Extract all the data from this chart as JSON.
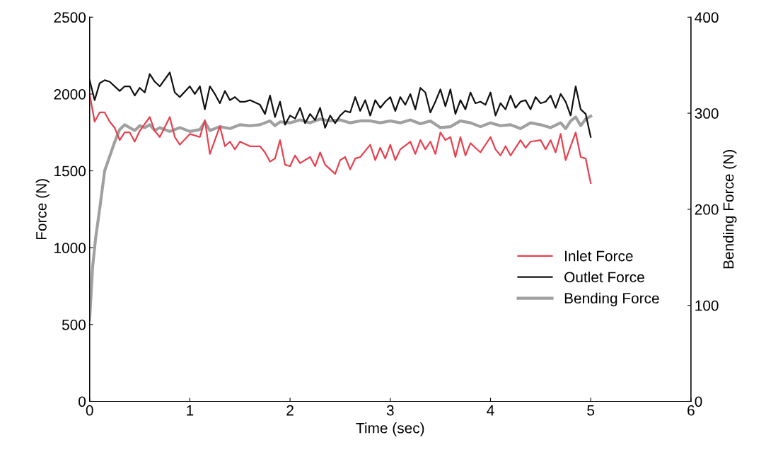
{
  "chart_data": {
    "type": "line",
    "xlabel": "Time (sec)",
    "ylabel": "Force (N)",
    "y2label": "Bending Force (N)",
    "xlim": [
      0,
      6
    ],
    "xticks": [
      0,
      1,
      2,
      3,
      4,
      5,
      6
    ],
    "ylim": [
      0,
      2500
    ],
    "yticks": [
      0,
      500,
      1000,
      1500,
      2000,
      2500
    ],
    "y2lim": [
      0,
      400
    ],
    "y2ticks": [
      0,
      100,
      200,
      300,
      400
    ],
    "grid": false,
    "legend": "right",
    "marker": "none",
    "line_style": "solid",
    "series": [
      {
        "name": "Inlet Force",
        "color": "#e8404f",
        "x": [
          0,
          0.05,
          0.1,
          0.15,
          0.2,
          0.25,
          0.3,
          0.35,
          0.4,
          0.45,
          0.5,
          0.6,
          0.65,
          0.7,
          0.8,
          0.85,
          0.9,
          1.0,
          1.1,
          1.15,
          1.2,
          1.3,
          1.35,
          1.4,
          1.45,
          1.5,
          1.6,
          1.7,
          1.75,
          1.8,
          1.85,
          1.9,
          1.95,
          2.0,
          2.05,
          2.1,
          2.2,
          2.25,
          2.3,
          2.35,
          2.45,
          2.5,
          2.55,
          2.6,
          2.65,
          2.7,
          2.8,
          2.85,
          2.9,
          2.95,
          3.0,
          3.05,
          3.1,
          3.2,
          3.25,
          3.3,
          3.35,
          3.4,
          3.45,
          3.5,
          3.55,
          3.6,
          3.65,
          3.7,
          3.75,
          3.8,
          3.85,
          3.9,
          4.0,
          4.05,
          4.1,
          4.15,
          4.2,
          4.3,
          4.35,
          4.4,
          4.5,
          4.55,
          4.6,
          4.65,
          4.7,
          4.75,
          4.85,
          4.9,
          4.95,
          5.0
        ],
        "values": [
          2000,
          1820,
          1880,
          1880,
          1820,
          1780,
          1700,
          1750,
          1750,
          1690,
          1760,
          1850,
          1760,
          1720,
          1850,
          1720,
          1670,
          1740,
          1720,
          1830,
          1610,
          1790,
          1660,
          1690,
          1640,
          1690,
          1660,
          1660,
          1620,
          1560,
          1580,
          1700,
          1540,
          1530,
          1600,
          1550,
          1590,
          1530,
          1620,
          1540,
          1480,
          1570,
          1590,
          1510,
          1580,
          1590,
          1670,
          1570,
          1650,
          1580,
          1670,
          1570,
          1640,
          1690,
          1610,
          1700,
          1640,
          1690,
          1610,
          1750,
          1700,
          1720,
          1590,
          1720,
          1600,
          1680,
          1650,
          1620,
          1720,
          1640,
          1600,
          1660,
          1600,
          1700,
          1650,
          1690,
          1700,
          1640,
          1700,
          1620,
          1740,
          1570,
          1750,
          1590,
          1580,
          1420
        ]
      },
      {
        "name": "Outlet Force",
        "color": "#111111",
        "x": [
          0,
          0.05,
          0.1,
          0.15,
          0.2,
          0.3,
          0.35,
          0.4,
          0.45,
          0.5,
          0.55,
          0.6,
          0.65,
          0.7,
          0.8,
          0.85,
          0.9,
          1.0,
          1.05,
          1.1,
          1.15,
          1.2,
          1.25,
          1.3,
          1.35,
          1.4,
          1.45,
          1.5,
          1.55,
          1.6,
          1.7,
          1.75,
          1.8,
          1.85,
          1.9,
          1.95,
          2.0,
          2.05,
          2.1,
          2.15,
          2.2,
          2.25,
          2.3,
          2.35,
          2.4,
          2.45,
          2.5,
          2.55,
          2.6,
          2.65,
          2.7,
          2.75,
          2.8,
          2.85,
          2.9,
          2.95,
          3.0,
          3.05,
          3.1,
          3.15,
          3.2,
          3.25,
          3.3,
          3.35,
          3.4,
          3.45,
          3.5,
          3.55,
          3.6,
          3.65,
          3.7,
          3.75,
          3.8,
          3.85,
          3.9,
          3.95,
          4.0,
          4.05,
          4.1,
          4.15,
          4.2,
          4.25,
          4.3,
          4.35,
          4.4,
          4.45,
          4.5,
          4.55,
          4.6,
          4.65,
          4.7,
          4.75,
          4.8,
          4.85,
          4.9,
          4.95,
          5.0
        ],
        "values": [
          2090,
          1960,
          2070,
          2090,
          2080,
          2020,
          2050,
          2050,
          1990,
          2040,
          2010,
          2130,
          2080,
          2050,
          2140,
          2010,
          1980,
          2050,
          2000,
          2050,
          1900,
          2050,
          2000,
          1940,
          2020,
          1960,
          1980,
          1950,
          1950,
          1960,
          1930,
          1870,
          1990,
          1850,
          1950,
          1800,
          1860,
          1840,
          1910,
          1810,
          1870,
          1830,
          1910,
          1780,
          1860,
          1810,
          1860,
          1890,
          1880,
          1980,
          1890,
          1960,
          1860,
          1960,
          1910,
          1950,
          1980,
          1890,
          1980,
          1930,
          2000,
          1900,
          2040,
          2010,
          1880,
          1950,
          2030,
          1920,
          2030,
          1870,
          1960,
          1900,
          2010,
          1940,
          1950,
          1930,
          2010,
          1860,
          1940,
          1900,
          1990,
          1910,
          1950,
          1960,
          1900,
          1980,
          1940,
          1950,
          1990,
          1910,
          2000,
          1950,
          1860,
          2050,
          1900,
          1870,
          1720
        ]
      },
      {
        "name": "Bending Force",
        "color": "#a0a0a0",
        "axis": "y2",
        "x": [
          0,
          0.03,
          0.06,
          0.1,
          0.15,
          0.2,
          0.25,
          0.3,
          0.35,
          0.4,
          0.45,
          0.5,
          0.55,
          0.6,
          0.65,
          0.7,
          0.8,
          0.9,
          1.0,
          1.1,
          1.15,
          1.2,
          1.3,
          1.4,
          1.5,
          1.6,
          1.7,
          1.8,
          1.85,
          1.9,
          2.0,
          2.1,
          2.2,
          2.3,
          2.4,
          2.5,
          2.6,
          2.7,
          2.8,
          2.9,
          3.0,
          3.1,
          3.2,
          3.3,
          3.4,
          3.5,
          3.6,
          3.7,
          3.8,
          3.9,
          4.0,
          4.1,
          4.2,
          4.3,
          4.4,
          4.5,
          4.6,
          4.7,
          4.75,
          4.8,
          4.85,
          4.9,
          4.95,
          5.0
        ],
        "values": [
          85,
          140,
          170,
          200,
          240,
          255,
          270,
          283,
          288,
          285,
          282,
          287,
          285,
          288,
          282,
          285,
          281,
          285,
          281,
          283,
          291,
          282,
          286,
          284,
          288,
          287,
          288,
          292,
          287,
          291,
          290,
          293,
          290,
          294,
          292,
          293,
          290,
          292,
          292,
          290,
          292,
          290,
          293,
          289,
          292,
          285,
          286,
          292,
          290,
          286,
          290,
          287,
          288,
          284,
          290,
          288,
          285,
          290,
          284,
          292,
          296,
          287,
          294,
          297
        ]
      }
    ]
  }
}
